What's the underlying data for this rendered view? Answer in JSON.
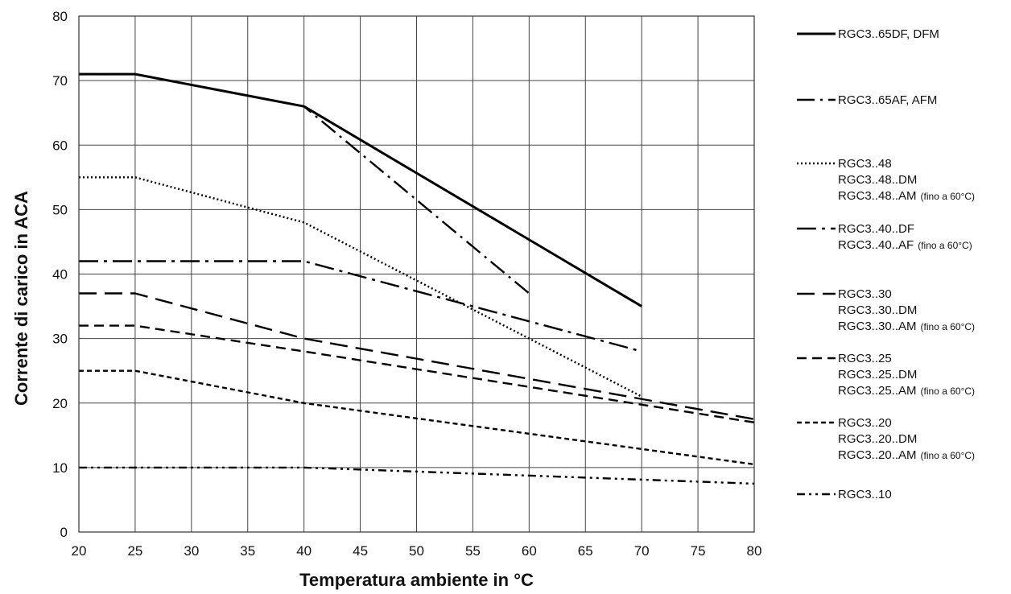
{
  "chart_data": {
    "type": "line",
    "xlabel": "Temperatura ambiente in °C",
    "ylabel": "Corrente di carico in ACA",
    "xlim": [
      20,
      80
    ],
    "ylim": [
      0,
      80
    ],
    "xticks": [
      20,
      25,
      30,
      35,
      40,
      45,
      50,
      55,
      60,
      65,
      70,
      75,
      80
    ],
    "yticks": [
      0,
      10,
      20,
      30,
      40,
      50,
      60,
      70,
      80
    ],
    "grid": true,
    "legend_position": "right",
    "series": [
      {
        "name": "RGC3..65DF, DFM",
        "lines": [
          "RGC3..65DF, DFM"
        ],
        "note": "",
        "dash": "solid",
        "points": [
          [
            20,
            71
          ],
          [
            25,
            71
          ],
          [
            40,
            66
          ],
          [
            70,
            35
          ]
        ]
      },
      {
        "name": "RGC3..65AF, AFM",
        "lines": [
          "RGC3..65AF, AFM"
        ],
        "note": "",
        "dash": "dash-dot",
        "points": [
          [
            20,
            71
          ],
          [
            25,
            71
          ],
          [
            40,
            66
          ],
          [
            60,
            37
          ]
        ]
      },
      {
        "name": "RGC3..48 / RGC3..48..DM / RGC3..48..AM",
        "lines": [
          "RGC3..48",
          "RGC3..48..DM",
          "RGC3..48..AM"
        ],
        "note": "(fino a 60°C)",
        "dash": "dot",
        "points": [
          [
            20,
            55
          ],
          [
            25,
            55
          ],
          [
            40,
            48
          ],
          [
            70,
            21
          ]
        ]
      },
      {
        "name": "RGC3..40..DF / RGC3..40..AF",
        "lines": [
          "RGC3..40..DF",
          "RGC3..40..AF"
        ],
        "note": "(fino a 60°C)",
        "dash": "long-dash-dot",
        "points": [
          [
            20,
            42
          ],
          [
            40,
            42
          ],
          [
            70,
            28
          ]
        ]
      },
      {
        "name": "RGC3..30 / RGC3..30..DM / RGC3..30..AM",
        "lines": [
          "RGC3..30",
          "RGC3..30..DM",
          "RGC3..30..AM"
        ],
        "note": "(fino a 60°C)",
        "dash": "long-dash",
        "points": [
          [
            20,
            37
          ],
          [
            25,
            37
          ],
          [
            40,
            30
          ],
          [
            80,
            17.5
          ]
        ]
      },
      {
        "name": "RGC3..25 / RGC3..25..DM / RGC3..25..AM",
        "lines": [
          "RGC3..25",
          "RGC3..25..DM",
          "RGC3..25..AM"
        ],
        "note": "(fino a 60°C)",
        "dash": "dash",
        "points": [
          [
            20,
            32
          ],
          [
            25,
            32
          ],
          [
            40,
            28
          ],
          [
            80,
            17
          ]
        ]
      },
      {
        "name": "RGC3..20 / RGC3..20..DM / RGC3..20..AM",
        "lines": [
          "RGC3..20",
          "RGC3..20..DM",
          "RGC3..20..AM"
        ],
        "note": "(fino a 60°C)",
        "dash": "short-dash",
        "points": [
          [
            20,
            25
          ],
          [
            25,
            25
          ],
          [
            40,
            20
          ],
          [
            80,
            10.5
          ]
        ]
      },
      {
        "name": "RGC3..10",
        "lines": [
          "RGC3..10"
        ],
        "note": "",
        "dash": "dash-dot-dot",
        "points": [
          [
            20,
            10
          ],
          [
            40,
            10
          ],
          [
            80,
            7.5
          ]
        ]
      }
    ]
  }
}
